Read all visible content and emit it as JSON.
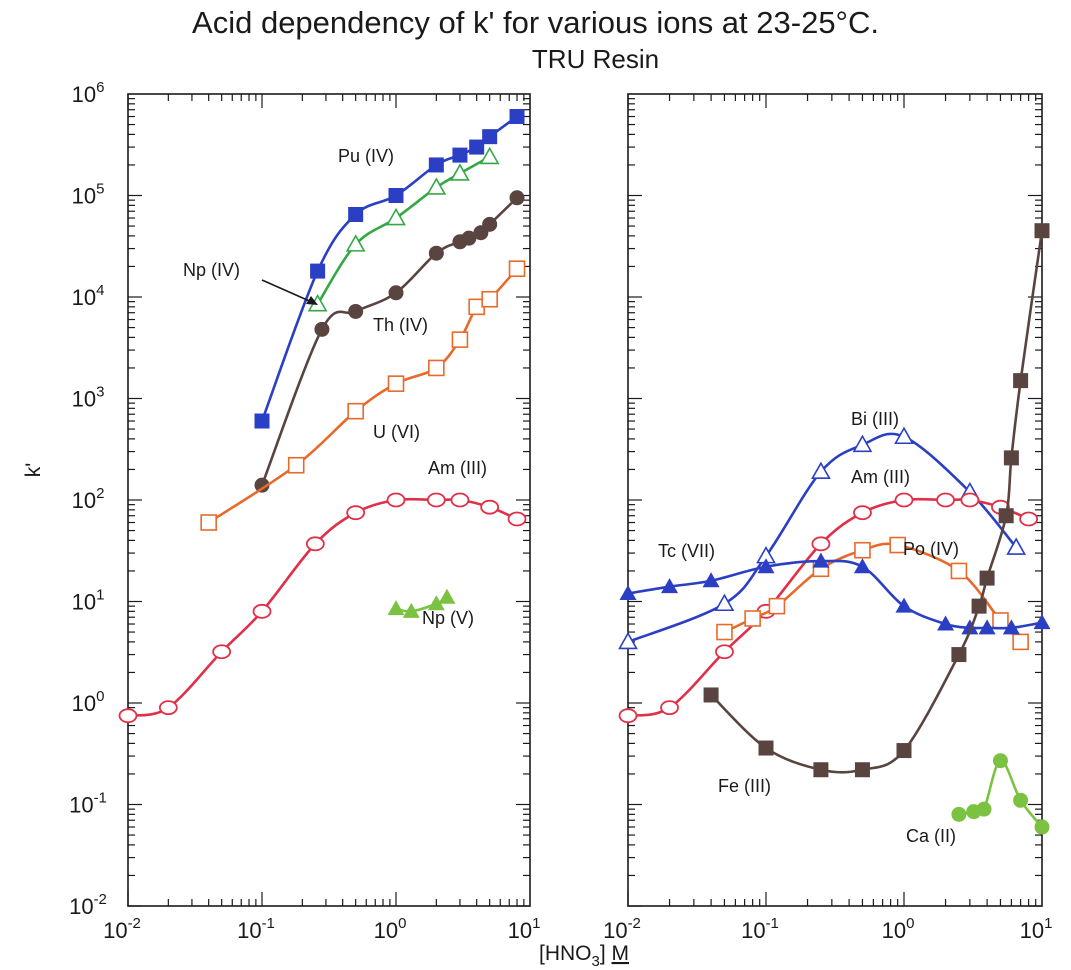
{
  "chart_data": {
    "type": "scatter",
    "title": "Acid dependency of k' for various ions at 23-25°C.",
    "subtitle": "TRU Resin",
    "xlabel": "[HNO3] M",
    "ylabel": "k'",
    "xscale": "log",
    "yscale": "log",
    "xlim": [
      0.01,
      10
    ],
    "ylim": [
      0.01,
      1000000
    ],
    "x_ticks": [
      0.01,
      0.1,
      1,
      10
    ],
    "y_ticks": [
      0.01,
      0.1,
      1,
      10,
      100,
      1000,
      10000,
      100000,
      1000000
    ],
    "x_tick_labels": [
      {
        "base": "10",
        "exp": "-2"
      },
      {
        "base": "10",
        "exp": "-1"
      },
      {
        "base": "10",
        "exp": "0"
      },
      {
        "base": "10",
        "exp": "1"
      }
    ],
    "y_tick_labels": [
      {
        "base": "10",
        "exp": "-2"
      },
      {
        "base": "10",
        "exp": "-1"
      },
      {
        "base": "10",
        "exp": "0"
      },
      {
        "base": "10",
        "exp": "1"
      },
      {
        "base": "10",
        "exp": "2"
      },
      {
        "base": "10",
        "exp": "3"
      },
      {
        "base": "10",
        "exp": "4"
      },
      {
        "base": "10",
        "exp": "5"
      },
      {
        "base": "10",
        "exp": "6"
      }
    ],
    "panels": [
      {
        "series": [
          {
            "name": "Pu (IV)",
            "color": "#2a3fc4",
            "marker": "square-filled",
            "x": [
              0.1,
              0.26,
              0.5,
              1.0,
              2.0,
              3.0,
              4.0,
              5.0,
              8.0
            ],
            "y": [
              600,
              18000,
              65000,
              100000,
              200000,
              250000,
              300000,
              380000,
              600000
            ]
          },
          {
            "name": "Np (IV)",
            "color": "#35a846",
            "marker": "triangle-open",
            "x": [
              0.26,
              0.5,
              1.0,
              2.0,
              3.0,
              5.0
            ],
            "y": [
              8500,
              33000,
              60000,
              120000,
              165000,
              240000
            ]
          },
          {
            "name": "Th (IV)",
            "color": "#5a4440",
            "marker": "circle-filled",
            "x": [
              0.1,
              0.28,
              0.5,
              1.0,
              2.0,
              3.0,
              3.5,
              4.3,
              5.0,
              8.0
            ],
            "y": [
              140,
              4800,
              7200,
              11000,
              27000,
              35000,
              38000,
              43000,
              52000,
              95000
            ]
          },
          {
            "name": "U (VI)",
            "color": "#e86a2a",
            "marker": "square-open",
            "x": [
              0.04,
              0.18,
              0.5,
              1.0,
              2.0,
              3.0,
              4.0,
              5.0,
              8.0
            ],
            "y": [
              60,
              220,
              750,
              1400,
              2000,
              3800,
              8000,
              9500,
              19000
            ]
          },
          {
            "name": "Am (III)",
            "color": "#e03048",
            "marker": "circle-open",
            "x": [
              0.01,
              0.02,
              0.05,
              0.1,
              0.25,
              0.5,
              1.0,
              2.0,
              3.0,
              5.0,
              8.0
            ],
            "y": [
              0.75,
              0.9,
              3.2,
              8.0,
              37,
              75,
              100,
              100,
              100,
              85,
              65
            ]
          },
          {
            "name": "Np (V)",
            "color": "#7cc242",
            "marker": "triangle-filled",
            "x": [
              1.0,
              1.3,
              2.0,
              2.4
            ],
            "y": [
              8.5,
              8.0,
              9.5,
              11
            ]
          }
        ]
      },
      {
        "series": [
          {
            "name": "Bi (III)",
            "color": "#2a3fc4",
            "marker": "triangle-open",
            "x": [
              0.01,
              0.05,
              0.1,
              0.25,
              0.5,
              1.0,
              3.0,
              6.5
            ],
            "y": [
              4.0,
              9.5,
              28,
              190,
              350,
              420,
              120,
              34
            ]
          },
          {
            "name": "Am (III)",
            "color": "#e03048",
            "marker": "circle-open",
            "x": [
              0.01,
              0.02,
              0.05,
              0.1,
              0.25,
              0.5,
              1.0,
              2.0,
              3.0,
              5.0,
              8.0
            ],
            "y": [
              0.75,
              0.9,
              3.2,
              8.0,
              37,
              75,
              100,
              100,
              100,
              85,
              65
            ]
          },
          {
            "name": "Po (IV)",
            "color": "#e86a2a",
            "marker": "square-open",
            "x": [
              0.05,
              0.08,
              0.12,
              0.25,
              0.5,
              0.9,
              2.5,
              5.0,
              7.0
            ],
            "y": [
              5.0,
              6.8,
              9.0,
              21,
              32,
              36,
              20,
              6.5,
              4.0
            ]
          },
          {
            "name": "Tc (VII)",
            "color": "#2a3fc4",
            "marker": "triangle-filled",
            "x": [
              0.01,
              0.02,
              0.04,
              0.1,
              0.25,
              0.5,
              1.0,
              2.0,
              3.0,
              4.0,
              6.0,
              10.0
            ],
            "y": [
              12,
              14,
              16,
              22,
              25,
              22,
              9.0,
              6.0,
              5.5,
              5.5,
              5.5,
              6.2
            ]
          },
          {
            "name": "Fe (III)",
            "color": "#5a4440",
            "marker": "square-filled",
            "x": [
              0.04,
              0.1,
              0.25,
              0.5,
              1.0,
              2.5,
              3.5,
              4.0,
              5.5,
              6.0,
              7.0,
              10.0
            ],
            "y": [
              1.2,
              0.36,
              0.22,
              0.22,
              0.34,
              3.0,
              9.0,
              17,
              70,
              260,
              1500,
              45000
            ]
          },
          {
            "name": "Ca (II)",
            "color": "#7cc242",
            "marker": "circle-filled",
            "x": [
              2.5,
              3.2,
              3.8,
              5.0,
              7.0,
              10.0
            ],
            "y": [
              0.08,
              0.085,
              0.09,
              0.27,
              0.11,
              0.06
            ]
          }
        ]
      }
    ]
  }
}
